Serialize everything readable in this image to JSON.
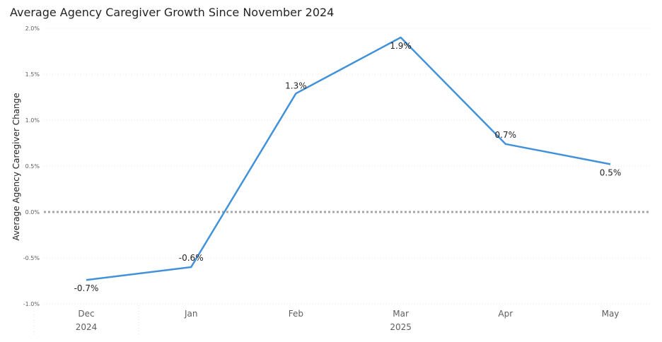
{
  "chart_data": {
    "type": "line",
    "title": "Average Agency Caregiver Growth Since November 2024",
    "ylabel": "Average Agency Caregiver Change",
    "xlabel": "",
    "categories": [
      "Dec",
      "Jan",
      "Feb",
      "Mar",
      "Apr",
      "May"
    ],
    "year_groups": [
      {
        "label": "2024",
        "from": 0,
        "to": 0
      },
      {
        "label": "2025",
        "from": 1,
        "to": 5
      }
    ],
    "series": [
      {
        "values": [
          -0.74,
          -0.6,
          1.29,
          1.9,
          0.74,
          0.52
        ],
        "data_labels": [
          "-0.7%",
          "-0.6%",
          "1.3%",
          "1.9%",
          "0.7%",
          "0.5%"
        ],
        "color": "#4292d9"
      }
    ],
    "ylim": [
      -1.0,
      2.0
    ],
    "yticks": [
      {
        "value": 2.0,
        "label": "2.0%"
      },
      {
        "value": 1.5,
        "label": "1.5%"
      },
      {
        "value": 1.0,
        "label": "1.0%"
      },
      {
        "value": 0.5,
        "label": "0.5%"
      },
      {
        "value": 0.0,
        "label": "0.0%"
      },
      {
        "value": -0.5,
        "label": "-0.5%"
      },
      {
        "value": -1.0,
        "label": "-1.0%"
      }
    ],
    "reference_line": {
      "value": 0.0,
      "style": "dotted",
      "color": "#a6a6a6"
    },
    "grid": true,
    "legend": "none",
    "gridline_color": "#e6e6e6"
  }
}
